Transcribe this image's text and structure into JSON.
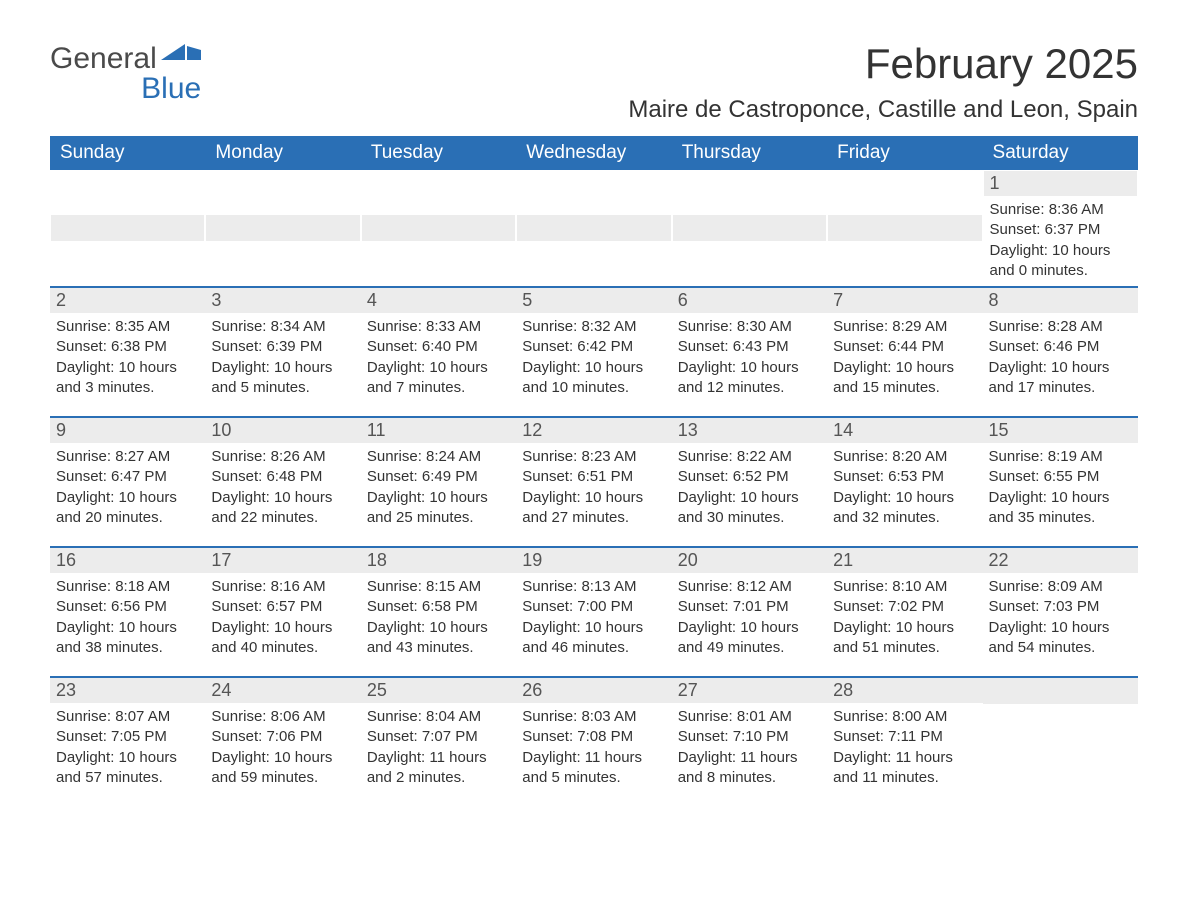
{
  "logo": {
    "word1": "General",
    "word2": "Blue"
  },
  "colors": {
    "header_bg": "#2a6fb5",
    "header_text": "#ffffff",
    "daynum_bg": "#ececec",
    "daynum_text": "#555555",
    "body_text": "#333333",
    "rule": "#2a6fb5",
    "logo_gray": "#4a4a4a",
    "logo_blue": "#2a6fb5"
  },
  "title": "February 2025",
  "location": "Maire de Castroponce, Castille and Leon, Spain",
  "weekdays": [
    "Sunday",
    "Monday",
    "Tuesday",
    "Wednesday",
    "Thursday",
    "Friday",
    "Saturday"
  ],
  "weeks": [
    [
      null,
      null,
      null,
      null,
      null,
      null,
      {
        "n": "1",
        "sunrise": "Sunrise: 8:36 AM",
        "sunset": "Sunset: 6:37 PM",
        "day1": "Daylight: 10 hours",
        "day2": "and 0 minutes."
      }
    ],
    [
      {
        "n": "2",
        "sunrise": "Sunrise: 8:35 AM",
        "sunset": "Sunset: 6:38 PM",
        "day1": "Daylight: 10 hours",
        "day2": "and 3 minutes."
      },
      {
        "n": "3",
        "sunrise": "Sunrise: 8:34 AM",
        "sunset": "Sunset: 6:39 PM",
        "day1": "Daylight: 10 hours",
        "day2": "and 5 minutes."
      },
      {
        "n": "4",
        "sunrise": "Sunrise: 8:33 AM",
        "sunset": "Sunset: 6:40 PM",
        "day1": "Daylight: 10 hours",
        "day2": "and 7 minutes."
      },
      {
        "n": "5",
        "sunrise": "Sunrise: 8:32 AM",
        "sunset": "Sunset: 6:42 PM",
        "day1": "Daylight: 10 hours",
        "day2": "and 10 minutes."
      },
      {
        "n": "6",
        "sunrise": "Sunrise: 8:30 AM",
        "sunset": "Sunset: 6:43 PM",
        "day1": "Daylight: 10 hours",
        "day2": "and 12 minutes."
      },
      {
        "n": "7",
        "sunrise": "Sunrise: 8:29 AM",
        "sunset": "Sunset: 6:44 PM",
        "day1": "Daylight: 10 hours",
        "day2": "and 15 minutes."
      },
      {
        "n": "8",
        "sunrise": "Sunrise: 8:28 AM",
        "sunset": "Sunset: 6:46 PM",
        "day1": "Daylight: 10 hours",
        "day2": "and 17 minutes."
      }
    ],
    [
      {
        "n": "9",
        "sunrise": "Sunrise: 8:27 AM",
        "sunset": "Sunset: 6:47 PM",
        "day1": "Daylight: 10 hours",
        "day2": "and 20 minutes."
      },
      {
        "n": "10",
        "sunrise": "Sunrise: 8:26 AM",
        "sunset": "Sunset: 6:48 PM",
        "day1": "Daylight: 10 hours",
        "day2": "and 22 minutes."
      },
      {
        "n": "11",
        "sunrise": "Sunrise: 8:24 AM",
        "sunset": "Sunset: 6:49 PM",
        "day1": "Daylight: 10 hours",
        "day2": "and 25 minutes."
      },
      {
        "n": "12",
        "sunrise": "Sunrise: 8:23 AM",
        "sunset": "Sunset: 6:51 PM",
        "day1": "Daylight: 10 hours",
        "day2": "and 27 minutes."
      },
      {
        "n": "13",
        "sunrise": "Sunrise: 8:22 AM",
        "sunset": "Sunset: 6:52 PM",
        "day1": "Daylight: 10 hours",
        "day2": "and 30 minutes."
      },
      {
        "n": "14",
        "sunrise": "Sunrise: 8:20 AM",
        "sunset": "Sunset: 6:53 PM",
        "day1": "Daylight: 10 hours",
        "day2": "and 32 minutes."
      },
      {
        "n": "15",
        "sunrise": "Sunrise: 8:19 AM",
        "sunset": "Sunset: 6:55 PM",
        "day1": "Daylight: 10 hours",
        "day2": "and 35 minutes."
      }
    ],
    [
      {
        "n": "16",
        "sunrise": "Sunrise: 8:18 AM",
        "sunset": "Sunset: 6:56 PM",
        "day1": "Daylight: 10 hours",
        "day2": "and 38 minutes."
      },
      {
        "n": "17",
        "sunrise": "Sunrise: 8:16 AM",
        "sunset": "Sunset: 6:57 PM",
        "day1": "Daylight: 10 hours",
        "day2": "and 40 minutes."
      },
      {
        "n": "18",
        "sunrise": "Sunrise: 8:15 AM",
        "sunset": "Sunset: 6:58 PM",
        "day1": "Daylight: 10 hours",
        "day2": "and 43 minutes."
      },
      {
        "n": "19",
        "sunrise": "Sunrise: 8:13 AM",
        "sunset": "Sunset: 7:00 PM",
        "day1": "Daylight: 10 hours",
        "day2": "and 46 minutes."
      },
      {
        "n": "20",
        "sunrise": "Sunrise: 8:12 AM",
        "sunset": "Sunset: 7:01 PM",
        "day1": "Daylight: 10 hours",
        "day2": "and 49 minutes."
      },
      {
        "n": "21",
        "sunrise": "Sunrise: 8:10 AM",
        "sunset": "Sunset: 7:02 PM",
        "day1": "Daylight: 10 hours",
        "day2": "and 51 minutes."
      },
      {
        "n": "22",
        "sunrise": "Sunrise: 8:09 AM",
        "sunset": "Sunset: 7:03 PM",
        "day1": "Daylight: 10 hours",
        "day2": "and 54 minutes."
      }
    ],
    [
      {
        "n": "23",
        "sunrise": "Sunrise: 8:07 AM",
        "sunset": "Sunset: 7:05 PM",
        "day1": "Daylight: 10 hours",
        "day2": "and 57 minutes."
      },
      {
        "n": "24",
        "sunrise": "Sunrise: 8:06 AM",
        "sunset": "Sunset: 7:06 PM",
        "day1": "Daylight: 10 hours",
        "day2": "and 59 minutes."
      },
      {
        "n": "25",
        "sunrise": "Sunrise: 8:04 AM",
        "sunset": "Sunset: 7:07 PM",
        "day1": "Daylight: 11 hours",
        "day2": "and 2 minutes."
      },
      {
        "n": "26",
        "sunrise": "Sunrise: 8:03 AM",
        "sunset": "Sunset: 7:08 PM",
        "day1": "Daylight: 11 hours",
        "day2": "and 5 minutes."
      },
      {
        "n": "27",
        "sunrise": "Sunrise: 8:01 AM",
        "sunset": "Sunset: 7:10 PM",
        "day1": "Daylight: 11 hours",
        "day2": "and 8 minutes."
      },
      {
        "n": "28",
        "sunrise": "Sunrise: 8:00 AM",
        "sunset": "Sunset: 7:11 PM",
        "day1": "Daylight: 11 hours",
        "day2": "and 11 minutes."
      },
      null
    ]
  ]
}
